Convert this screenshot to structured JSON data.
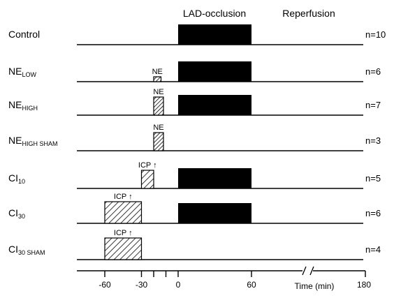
{
  "headers": {
    "occlusion": "LAD-occlusion",
    "reperfusion": "Reperfusion"
  },
  "groups": [
    {
      "name": "Control",
      "sub": "",
      "n": "n=10",
      "baseline_end": 520,
      "blocks": [
        {
          "from": 0,
          "to": 60,
          "kind": "solid"
        }
      ]
    },
    {
      "name": "NE",
      "sub": "LOW",
      "n": "n=6",
      "baseline_end": 520,
      "blocks": [
        {
          "from": -20,
          "to": -14,
          "kind": "hatch-dense",
          "label": "NE"
        },
        {
          "from": 0,
          "to": 60,
          "kind": "solid"
        }
      ]
    },
    {
      "name": "NE",
      "sub": "HIGH",
      "n": "n=7",
      "baseline_end": 520,
      "blocks": [
        {
          "from": -20,
          "to": -12,
          "kind": "hatch-dense",
          "label": "NE"
        },
        {
          "from": 0,
          "to": 60,
          "kind": "solid"
        }
      ]
    },
    {
      "name": "NE",
      "sub": "HIGH SHAM",
      "n": "n=3",
      "baseline_end": 520,
      "blocks": [
        {
          "from": -20,
          "to": -12,
          "kind": "hatch-dense",
          "label": "NE"
        }
      ]
    },
    {
      "name": "CI",
      "sub": "10",
      "n": "n=5",
      "baseline_end": 520,
      "blocks": [
        {
          "from": -30,
          "to": -20,
          "kind": "hatch-sparse",
          "label": "ICP ↑"
        },
        {
          "from": 0,
          "to": 60,
          "kind": "solid"
        }
      ]
    },
    {
      "name": "CI",
      "sub": "30",
      "n": "n=6",
      "baseline_end": 520,
      "blocks": [
        {
          "from": -60,
          "to": -30,
          "kind": "hatch-sparse",
          "label": "ICP ↑"
        },
        {
          "from": 0,
          "to": 60,
          "kind": "solid"
        }
      ]
    },
    {
      "name": "CI",
      "sub": "30 SHAM",
      "n": "n=4",
      "baseline_end": 520,
      "blocks": [
        {
          "from": -60,
          "to": -30,
          "kind": "hatch-sparse",
          "label": "ICP ↑"
        }
      ]
    }
  ],
  "axis": {
    "major_ticks": [
      {
        "value": -60,
        "label": "-60"
      },
      {
        "value": -30,
        "label": "-30"
      },
      {
        "value": 0,
        "label": "0"
      },
      {
        "value": 60,
        "label": "60"
      }
    ],
    "minor_ticks": [
      -20,
      -10
    ],
    "end_tick": {
      "label": "180"
    },
    "xlabel": "Time (min)"
  }
}
